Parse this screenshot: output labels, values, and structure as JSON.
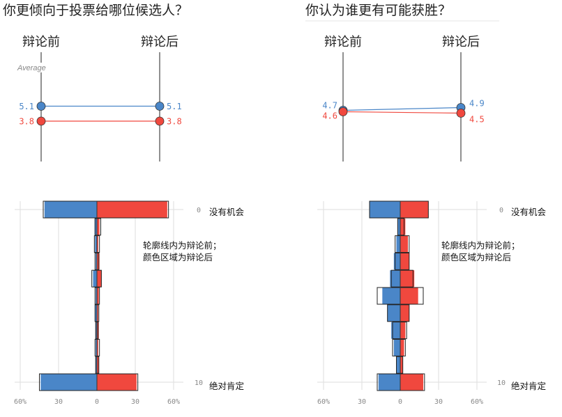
{
  "colors": {
    "blue": "#4a86c8",
    "red": "#f0483e",
    "outline": "#222222",
    "grid": "#dddddd",
    "axis": "#555555"
  },
  "chart_data": [
    {
      "type": "slope",
      "title": "你更倾向于投票给哪位候选人？",
      "columns": [
        "辩论前",
        "辩论后"
      ],
      "average_label": "Average",
      "series": [
        {
          "color": "blue",
          "values": [
            5.1,
            5.1
          ],
          "labels": [
            "5.1",
            "5.1"
          ]
        },
        {
          "color": "red",
          "values": [
            3.8,
            3.8
          ],
          "labels": [
            "3.8",
            "3.8"
          ]
        }
      ]
    },
    {
      "type": "slope",
      "title": "你认为谁更有可能获胜？",
      "columns": [
        "辩论前",
        "辩论后"
      ],
      "series": [
        {
          "color": "blue",
          "values": [
            4.7,
            4.9
          ],
          "labels": [
            "4.7",
            "4.9"
          ]
        },
        {
          "color": "red",
          "values": [
            4.6,
            4.5
          ],
          "labels": [
            "4.6",
            "4.5"
          ]
        }
      ]
    },
    {
      "type": "bar",
      "orientation": "horizontal-butterfly",
      "categories": [
        0,
        1,
        2,
        3,
        4,
        5,
        6,
        7,
        8,
        9,
        10
      ],
      "x_ticks": [
        "60%",
        "30",
        "0",
        "30",
        "60%"
      ],
      "xlim": [
        -60,
        60
      ],
      "y_end_labels": [
        "0",
        "10"
      ],
      "top_label": "没有机会",
      "bottom_label": "绝对肯定",
      "note": [
        "轮廓线内为辩论前；",
        "颜色区域为辩论后"
      ],
      "series": [
        {
          "name": "blue_after",
          "values": [
            41,
            1.8,
            1.5,
            1,
            3,
            1,
            1.5,
            1,
            1,
            0.8,
            44
          ]
        },
        {
          "name": "red_after",
          "values": [
            55,
            2,
            1,
            2,
            3.5,
            1.5,
            1,
            1.5,
            1,
            1.5,
            31
          ]
        },
        {
          "name": "blue_before",
          "values": [
            42,
            1.5,
            2,
            1.5,
            4,
            1.5,
            1.5,
            1,
            1.5,
            1,
            45
          ]
        },
        {
          "name": "red_before",
          "values": [
            56,
            3,
            2,
            1.5,
            3.5,
            2,
            1.5,
            1,
            2,
            1.5,
            32
          ]
        }
      ]
    },
    {
      "type": "bar",
      "orientation": "horizontal-butterfly",
      "categories": [
        0,
        1,
        2,
        3,
        4,
        5,
        6,
        7,
        8,
        9,
        10
      ],
      "x_ticks": [
        "60%",
        "30",
        "0",
        "30",
        "60%"
      ],
      "xlim": [
        -60,
        60
      ],
      "y_end_labels": [
        "0",
        "10"
      ],
      "top_label": "没有机会",
      "bottom_label": "绝对肯定",
      "note": [
        "轮廓线内为辩论前；",
        "颜色区域为辩论后"
      ],
      "series": [
        {
          "name": "blue_after",
          "values": [
            24,
            2,
            3,
            5,
            8,
            14,
            10,
            7,
            5,
            3,
            17
          ]
        },
        {
          "name": "red_after",
          "values": [
            22,
            4,
            6,
            7,
            11,
            14,
            7,
            4,
            3,
            2,
            18
          ]
        },
        {
          "name": "blue_before",
          "values": [
            24,
            2,
            4,
            4,
            7,
            18,
            10,
            6,
            6,
            3,
            18
          ]
        },
        {
          "name": "red_before",
          "values": [
            22,
            3,
            7,
            7,
            10,
            18,
            7,
            5,
            4,
            2,
            19
          ]
        }
      ]
    }
  ]
}
